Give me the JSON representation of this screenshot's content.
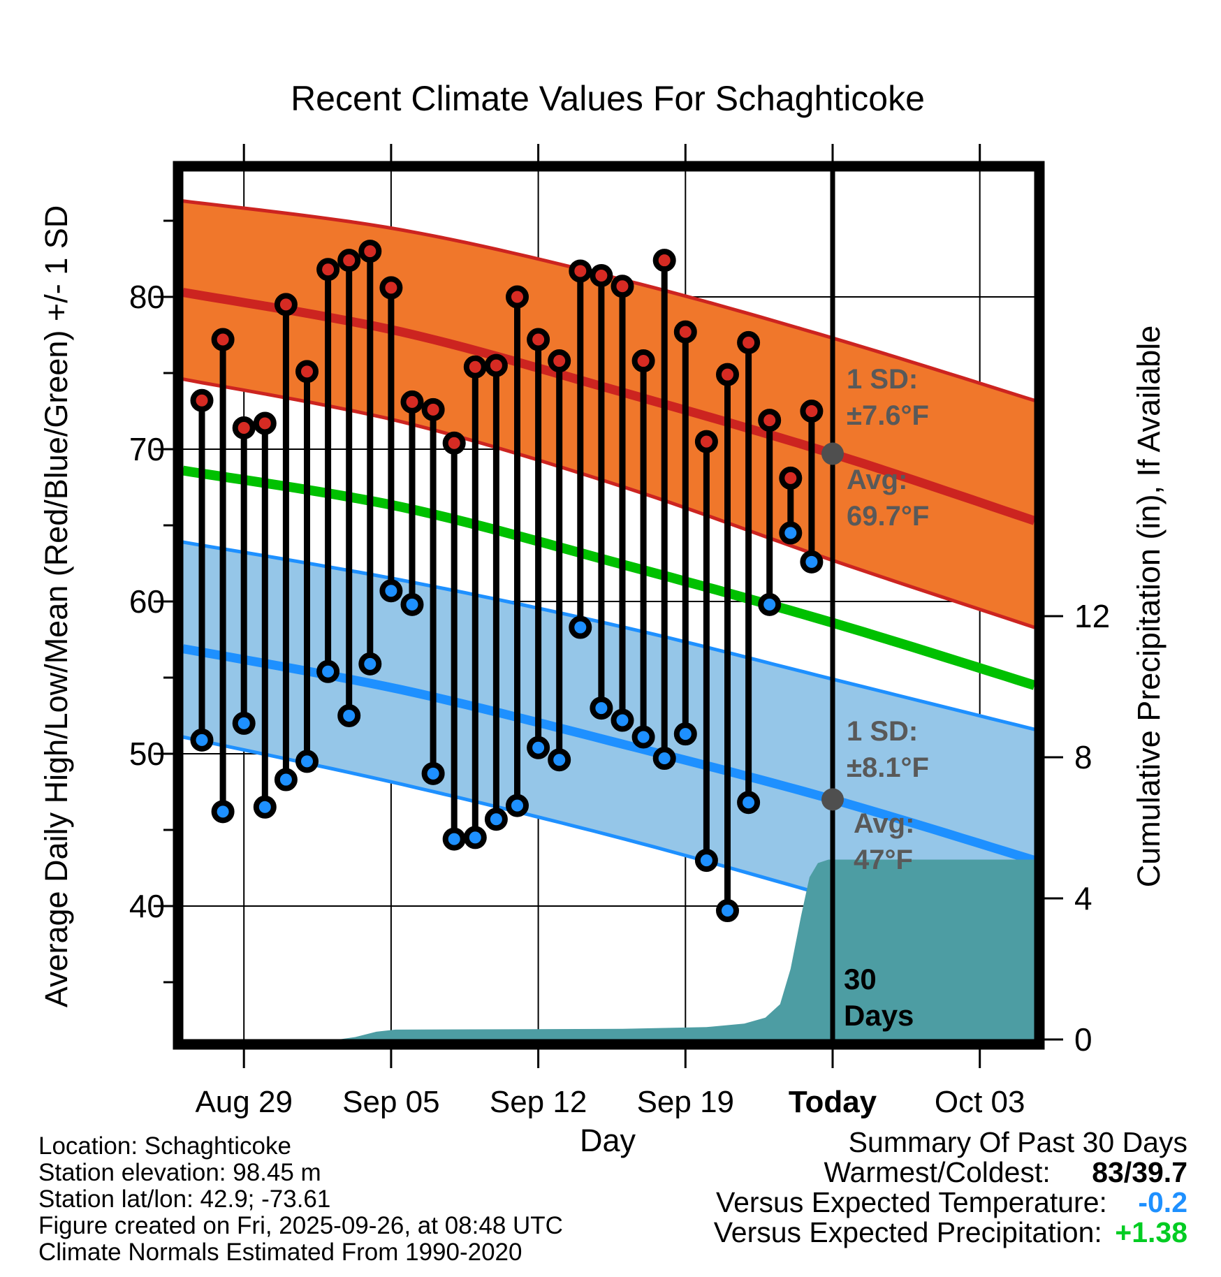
{
  "title": "Recent Climate Values For Schaghticoke",
  "axes": {
    "left": {
      "label": "Average Daily High/Low/Mean (Red/Blue/Green) +/- 1 SD",
      "ticks": [
        "80",
        "70",
        "60",
        "50",
        "40"
      ]
    },
    "right": {
      "label": "Cumulative Precipitation (in), If Available",
      "ticks": [
        "12",
        "8",
        "4",
        "0"
      ]
    },
    "bottom": {
      "label": "Day",
      "ticks": [
        "Aug 29",
        "Sep 05",
        "Sep 12",
        "Sep 19",
        "Today",
        "Oct 03"
      ]
    }
  },
  "annotations": {
    "high_sd_line1": "1 SD:",
    "high_sd_line2": "±7.6°F",
    "high_avg_line1": "Avg:",
    "high_avg_line2": "69.7°F",
    "low_sd_line1": "1 SD:",
    "low_sd_line2": "±8.1°F",
    "low_avg_line1": "Avg:",
    "low_avg_line2": "47°F",
    "period_line1": "30",
    "period_line2": "Days"
  },
  "footer": {
    "line1": "Location: Schaghticoke",
    "line2": "Station elevation: 98.45 m",
    "line3": "Station lat/lon: 42.9; -73.61",
    "line4": "Figure created on Fri, 2025-09-26, at 08:48 UTC",
    "line5": "Climate Normals Estimated From 1990-2020"
  },
  "summary": {
    "title": "Summary Of Past 30 Days",
    "row1_label": "Warmest/Coldest:",
    "row1_value": "83/39.7",
    "row2_label": "Versus Expected Temperature:",
    "row2_value": "-0.2",
    "row3_label": "Versus Expected Precipitation:",
    "row3_value": "+1.38"
  },
  "colors": {
    "high_band_fill": "#F0772B",
    "high_line": "#CC2420",
    "high_dot": "#D62B23",
    "low_band_fill": "#95C6E8",
    "low_line": "#1E90FF",
    "low_dot": "#1E90FF",
    "mean_line": "#00C000",
    "precip_fill": "#4D9DA3",
    "stem": "#000000",
    "today_marker": "#4F4F4F",
    "annotation_gray": "#595959",
    "summary_temp_value": "#1E90FF",
    "summary_precip_value": "#00CC22"
  },
  "chart_data": {
    "type": "line",
    "subtype": "daily-high-low-stems-with-climatology-bands-and-precip-area",
    "title": "Recent Climate Values For Schaghticoke",
    "xlabel": "Day",
    "ylabel_left": "Average Daily High/Low/Mean (Red/Blue/Green) +/- 1 SD",
    "ylabel_right": "Cumulative Precipitation (in), If Available",
    "temp_axis": {
      "major_ticks": [
        80,
        70,
        60,
        50,
        40
      ],
      "minor_ticks": [
        85,
        75,
        65,
        55,
        45,
        35
      ]
    },
    "precip_axis": {
      "ticks": [
        12,
        8,
        4,
        0
      ]
    },
    "x_tick_days": [
      2,
      9,
      16,
      23,
      30,
      37
    ],
    "today_day": 30,
    "dates": [
      "Aug 27",
      "Aug 28",
      "Aug 29",
      "Aug 30",
      "Aug 31",
      "Sep 01",
      "Sep 02",
      "Sep 03",
      "Sep 04",
      "Sep 05",
      "Sep 06",
      "Sep 07",
      "Sep 08",
      "Sep 09",
      "Sep 10",
      "Sep 11",
      "Sep 12",
      "Sep 13",
      "Sep 14",
      "Sep 15",
      "Sep 16",
      "Sep 17",
      "Sep 18",
      "Sep 19",
      "Sep 20",
      "Sep 21",
      "Sep 22",
      "Sep 23",
      "Sep 24",
      "Sep 25"
    ],
    "series": [
      {
        "name": "Daily High (°F)",
        "values": [
          73.2,
          77.2,
          71.4,
          71.7,
          79.5,
          75.1,
          81.8,
          82.4,
          83.0,
          80.6,
          73.1,
          72.6,
          70.4,
          75.4,
          75.5,
          80.0,
          77.2,
          75.8,
          81.7,
          81.4,
          80.7,
          75.8,
          82.4,
          77.7,
          70.5,
          74.9,
          77.0,
          71.9,
          68.1,
          72.5
        ]
      },
      {
        "name": "Daily Low (°F)",
        "values": [
          50.9,
          46.2,
          52.0,
          46.5,
          48.3,
          49.5,
          55.4,
          52.5,
          55.9,
          60.7,
          59.8,
          48.7,
          44.4,
          44.5,
          45.7,
          46.6,
          50.4,
          49.6,
          58.3,
          53.0,
          52.2,
          51.1,
          49.7,
          51.3,
          43.0,
          39.7,
          46.8,
          59.8,
          64.5,
          62.6
        ]
      }
    ],
    "climatology": {
      "day": [
        -0.9,
        9.5,
        20.1,
        30.0,
        39.6
      ],
      "high_mean": [
        80.3,
        77.7,
        73.7,
        69.7,
        65.3
      ],
      "high_upper": [
        86.3,
        84.4,
        81.1,
        77.3,
        73.2
      ],
      "high_lower": [
        74.6,
        71.8,
        67.5,
        62.7,
        58.3
      ],
      "mean": [
        68.6,
        66.2,
        62.4,
        58.6,
        54.5
      ],
      "low_mean": [
        56.9,
        54.2,
        50.6,
        47.0,
        43.0
      ],
      "low_upper": [
        63.9,
        61.4,
        58.3,
        54.9,
        51.6
      ],
      "low_lower": [
        51.1,
        48.0,
        44.4,
        40.6,
        36.9
      ]
    },
    "high_marker": {
      "avg_f": 69.7,
      "sd_f": 7.6
    },
    "low_marker": {
      "avg_f": 47,
      "sd_f": 8.1
    },
    "precip_curve": {
      "day": [
        -0.9,
        6.5,
        7.3,
        8.3,
        9.2,
        20.0,
        24.0,
        25.8,
        26.8,
        27.5,
        28.0,
        28.5,
        28.9,
        29.3,
        29.8,
        39.6
      ],
      "inches": [
        0,
        0,
        0.07,
        0.22,
        0.28,
        0.3,
        0.35,
        0.45,
        0.62,
        1.0,
        2.0,
        3.5,
        4.6,
        5.0,
        5.1,
        5.1
      ]
    },
    "temp_ylim": [
      31,
      88.5
    ],
    "precip_ylim": [
      0,
      24.6
    ],
    "grid": true,
    "summary_warmest_coldest": "83/39.7",
    "versus_expected_temperature": -0.2,
    "versus_expected_precipitation": 1.38
  }
}
